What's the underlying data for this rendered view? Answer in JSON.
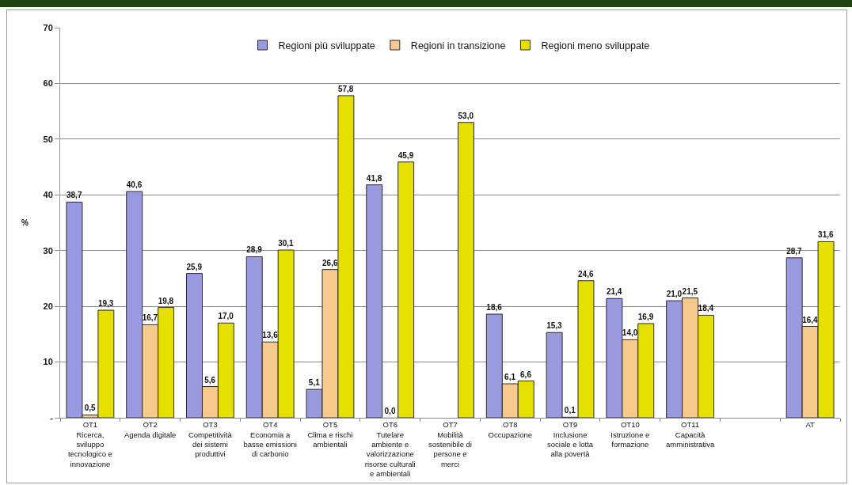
{
  "chart_data": {
    "type": "bar",
    "ylabel": "%",
    "categories": [
      "OT1\nRicerca,\nsviluppo\ntecnologico e\ninnovazione",
      "OT2\nAgenda digitale",
      "OT3\nCompetitività\ndei sistemi\nproduttivi",
      "OT4\nEconomia a\nbasse emissioni\ndi carbonio",
      "OT5\nClima e rischi\nambientali",
      "OT6\nTutelare\nambiente e\nvalorizzazione\nrisorse culturali\ne ambientali",
      "OT7\nMobilità\nsostenibile di\npersone e\nmerci",
      "OT8\nOccupazione",
      "OT9\nInclusione\nsociale e lotta\nalla povertà",
      "OT10\nIstruzione e\nformazione",
      "OT11\nCapacità\namministrativa",
      null,
      "AT"
    ],
    "series": [
      {
        "name": "Regioni più sviluppate",
        "color": "#9999e0",
        "values": [
          38.7,
          40.6,
          25.9,
          28.9,
          5.1,
          41.8,
          null,
          18.6,
          15.3,
          21.4,
          21.0,
          null,
          28.7
        ],
        "value_labels": [
          "38,7",
          "40,6",
          "25,9",
          "28,9",
          "5,1",
          "41,8",
          null,
          "18,6",
          "15,3",
          "21,4",
          "21,0",
          null,
          "28,7"
        ]
      },
      {
        "name": "Regioni in transizione",
        "color": "#f6c98c",
        "values": [
          0.5,
          16.7,
          5.6,
          13.6,
          26.6,
          0.0,
          null,
          6.1,
          0.1,
          14.0,
          21.5,
          null,
          16.4
        ],
        "value_labels": [
          "0,5",
          "16,7",
          "5,6",
          "13,6",
          "26,6",
          "0,0",
          null,
          "6,1",
          "0,1",
          "14,0",
          "21,5",
          null,
          "16,4"
        ]
      },
      {
        "name": "Regioni meno sviluppate",
        "color": "#e6e000",
        "values": [
          19.3,
          19.8,
          17.0,
          30.1,
          57.8,
          45.9,
          53.0,
          6.6,
          24.6,
          16.9,
          18.4,
          null,
          31.6
        ],
        "value_labels": [
          "19,3",
          "19,8",
          "17,0",
          "30,1",
          "57,8",
          "45,9",
          "53,0",
          "6,6",
          "24,6",
          "16,9",
          "18,4",
          null,
          "31,6"
        ]
      }
    ],
    "ylim": [
      0,
      70
    ],
    "yticks": [
      {
        "value": 0,
        "label": "-"
      },
      10,
      20,
      30,
      40,
      50,
      60,
      70
    ],
    "grid": "y",
    "legend": "top"
  }
}
